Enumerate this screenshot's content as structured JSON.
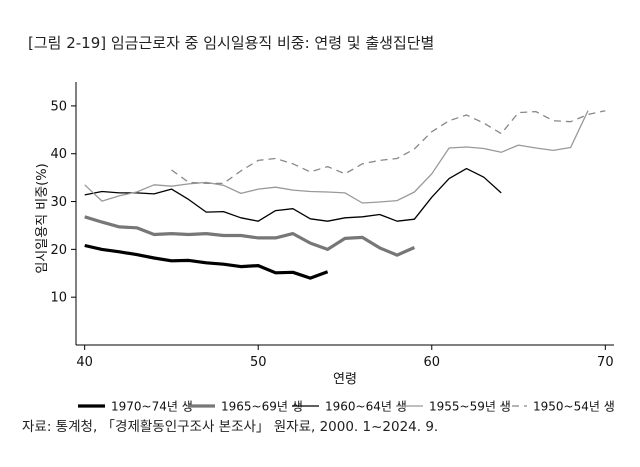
{
  "title": "[그림 2-19] 임금근로자 중 임시일용직 비중: 연령 및 출생집단별",
  "source": "자료: 통계청, 「경제활동인구조사 본조사」 원자료, 2000. 1~2024. 9.",
  "chart_data": {
    "type": "line",
    "xlabel": "연령",
    "ylabel": "임시일용직 비중(%)",
    "xlim": [
      39.5,
      70.5
    ],
    "ylim": [
      0,
      55
    ],
    "xticks": [
      40,
      50,
      60,
      70
    ],
    "yticks": [
      10,
      20,
      30,
      40,
      50
    ],
    "legend_position": "bottom",
    "series": [
      {
        "name": "1970~74년 생",
        "color": "#000000",
        "style": "thick-solid",
        "x": [
          40,
          41,
          42,
          43,
          44,
          45,
          46,
          47,
          48,
          49,
          50,
          51,
          52,
          53,
          54
        ],
        "values": [
          20.8,
          20.0,
          19.5,
          18.9,
          18.2,
          17.6,
          17.7,
          17.2,
          16.9,
          16.4,
          16.6,
          15.1,
          15.2,
          14.0,
          15.3
        ]
      },
      {
        "name": "1965~69년 생",
        "color": "#777777",
        "style": "thick-solid",
        "x": [
          40,
          41,
          42,
          43,
          44,
          45,
          46,
          47,
          48,
          49,
          50,
          51,
          52,
          53,
          54,
          55,
          56,
          57,
          58,
          59
        ],
        "values": [
          26.8,
          25.7,
          24.7,
          24.5,
          23.1,
          23.3,
          23.1,
          23.3,
          22.9,
          22.9,
          22.4,
          22.4,
          23.3,
          21.3,
          20.0,
          22.3,
          22.5,
          20.3,
          18.8,
          20.4
        ]
      },
      {
        "name": "1960~64년 생",
        "color": "#000000",
        "style": "thin-solid",
        "x": [
          40,
          41,
          42,
          43,
          44,
          45,
          46,
          47,
          48,
          49,
          50,
          51,
          52,
          53,
          54,
          55,
          56,
          57,
          58,
          59,
          60,
          61,
          62,
          63,
          64
        ],
        "values": [
          31.4,
          32.1,
          31.8,
          31.8,
          31.6,
          32.6,
          30.4,
          27.8,
          27.9,
          26.6,
          25.9,
          28.1,
          28.5,
          26.4,
          25.9,
          26.6,
          26.8,
          27.3,
          25.9,
          26.3,
          30.9,
          34.8,
          36.9,
          35.1,
          31.8
        ]
      },
      {
        "name": "1955~59년 생",
        "color": "#999999",
        "style": "thin-solid",
        "x": [
          40,
          41,
          42,
          43,
          44,
          45,
          46,
          47,
          48,
          49,
          50,
          51,
          52,
          53,
          54,
          55,
          56,
          57,
          58,
          59,
          60,
          61,
          62,
          63,
          64,
          65,
          66,
          67,
          68,
          69
        ],
        "values": [
          33.5,
          30.1,
          31.2,
          32.0,
          33.5,
          33.2,
          33.7,
          34.0,
          33.4,
          31.7,
          32.6,
          33.0,
          32.4,
          32.1,
          32.0,
          31.8,
          29.7,
          29.9,
          30.2,
          32.0,
          35.8,
          41.2,
          41.4,
          41.1,
          40.3,
          41.8,
          41.2,
          40.7,
          41.3,
          49.0
        ]
      },
      {
        "name": "1950~54년 생",
        "color": "#888888",
        "style": "dashed",
        "x": [
          45,
          46,
          47,
          48,
          49,
          50,
          51,
          52,
          53,
          54,
          55,
          56,
          57,
          58,
          59,
          60,
          61,
          62,
          63,
          64,
          65,
          66,
          67,
          68,
          69,
          70
        ],
        "values": [
          36.6,
          34.0,
          33.8,
          33.8,
          36.4,
          38.6,
          39.0,
          37.9,
          36.2,
          37.3,
          35.8,
          37.9,
          38.6,
          39.0,
          41.0,
          44.6,
          46.9,
          48.1,
          46.4,
          44.2,
          48.6,
          48.8,
          46.9,
          46.7,
          48.2,
          49.0
        ]
      }
    ]
  }
}
